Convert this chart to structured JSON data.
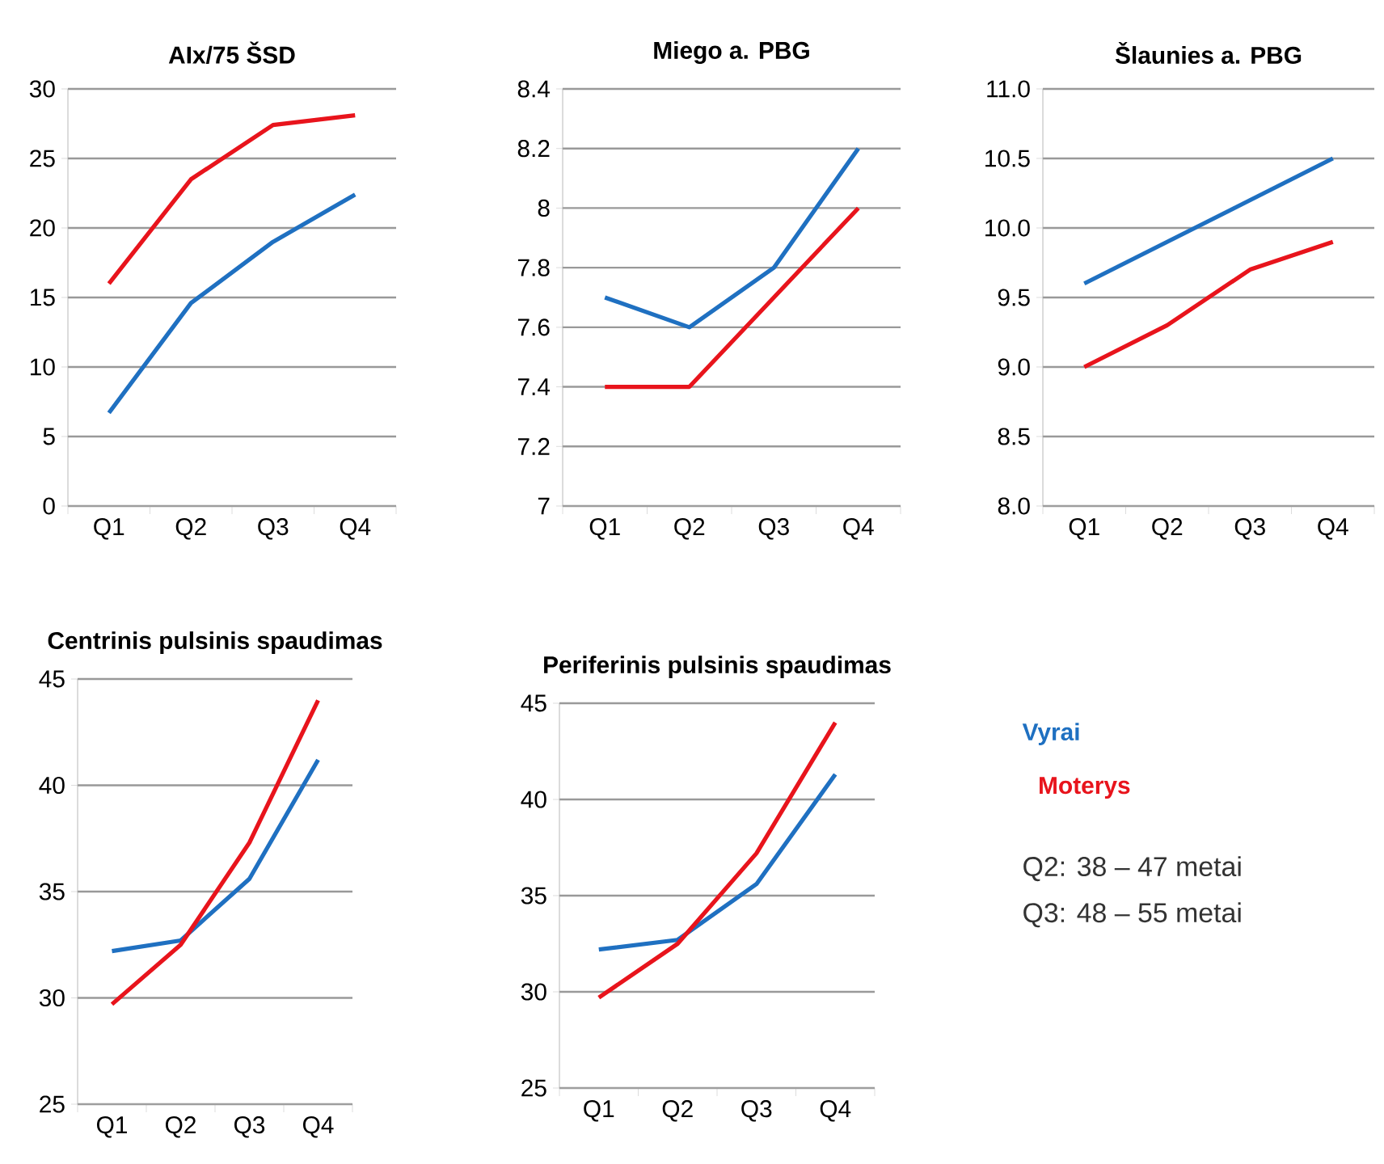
{
  "chart_data": [
    {
      "type": "line",
      "title": "AIx/75 ŠSD",
      "categories": [
        "Q1",
        "Q2",
        "Q3",
        "Q4"
      ],
      "ylim": [
        0,
        30
      ],
      "yticks": [
        0,
        5,
        10,
        15,
        20,
        25,
        30
      ],
      "grid": "y",
      "series": [
        {
          "color": "#1f70c1",
          "values": [
            6.7,
            14.6,
            19.0,
            22.4
          ]
        },
        {
          "color": "#e8141c",
          "values": [
            16.0,
            23.5,
            27.4,
            28.1
          ]
        }
      ]
    },
    {
      "type": "line",
      "title": "Miego a. PBG",
      "categories": [
        "Q1",
        "Q2",
        "Q3",
        "Q4"
      ],
      "ylim": [
        7,
        8.4
      ],
      "yticks": [
        7,
        7.2,
        7.4,
        7.6,
        7.8,
        8,
        8.2,
        8.4
      ],
      "grid": "y",
      "series": [
        {
          "color": "#1f70c1",
          "values": [
            7.7,
            7.6,
            7.8,
            8.2
          ]
        },
        {
          "color": "#e8141c",
          "values": [
            7.4,
            7.4,
            7.7,
            8.0
          ]
        }
      ]
    },
    {
      "type": "line",
      "title": "Šlaunies a. PBG",
      "categories": [
        "Q1",
        "Q2",
        "Q3",
        "Q4"
      ],
      "ylim": [
        8,
        11
      ],
      "yticks": [
        {
          "value": 8,
          "label": "8.0"
        },
        8.5,
        {
          "value": 9,
          "label": "9.0"
        },
        9.5,
        {
          "value": 10,
          "label": "10.0"
        },
        10.5,
        {
          "value": 11,
          "label": "11.0"
        }
      ],
      "grid": "y",
      "series": [
        {
          "color": "#1f70c1",
          "values": [
            9.6,
            9.9,
            10.2,
            10.5
          ]
        },
        {
          "color": "#e8141c",
          "values": [
            9.0,
            9.3,
            9.7,
            9.9
          ]
        }
      ]
    },
    {
      "type": "line",
      "title": "Centrinis pulsinis spaudimas",
      "categories": [
        "Q1",
        "Q2",
        "Q3",
        "Q4"
      ],
      "ylim": [
        25,
        45
      ],
      "yticks": [
        25,
        30,
        35,
        40,
        45
      ],
      "grid": "y",
      "series": [
        {
          "color": "#1f70c1",
          "values": [
            32.2,
            32.7,
            35.6,
            41.2
          ]
        },
        {
          "color": "#e8141c",
          "values": [
            29.7,
            32.5,
            37.3,
            44.0
          ]
        }
      ]
    },
    {
      "type": "line",
      "title": "Periferinis pulsinis spaudimas",
      "categories": [
        "Q1",
        "Q2",
        "Q3",
        "Q4"
      ],
      "ylim": [
        25,
        45
      ],
      "yticks": [
        25,
        30,
        35,
        40,
        45
      ],
      "grid": "y",
      "legend": "right",
      "annotations": [
        "Q2: 38 – 47 metai",
        "Q3: 48 – 55 metai"
      ],
      "series": [
        {
          "name": "Vyrai",
          "color": "#1f70c1",
          "values": [
            32.2,
            32.7,
            35.6,
            41.3
          ]
        },
        {
          "name": "Moterys",
          "color": "#e8141c",
          "values": [
            29.7,
            32.5,
            37.2,
            44.0
          ]
        }
      ]
    }
  ]
}
